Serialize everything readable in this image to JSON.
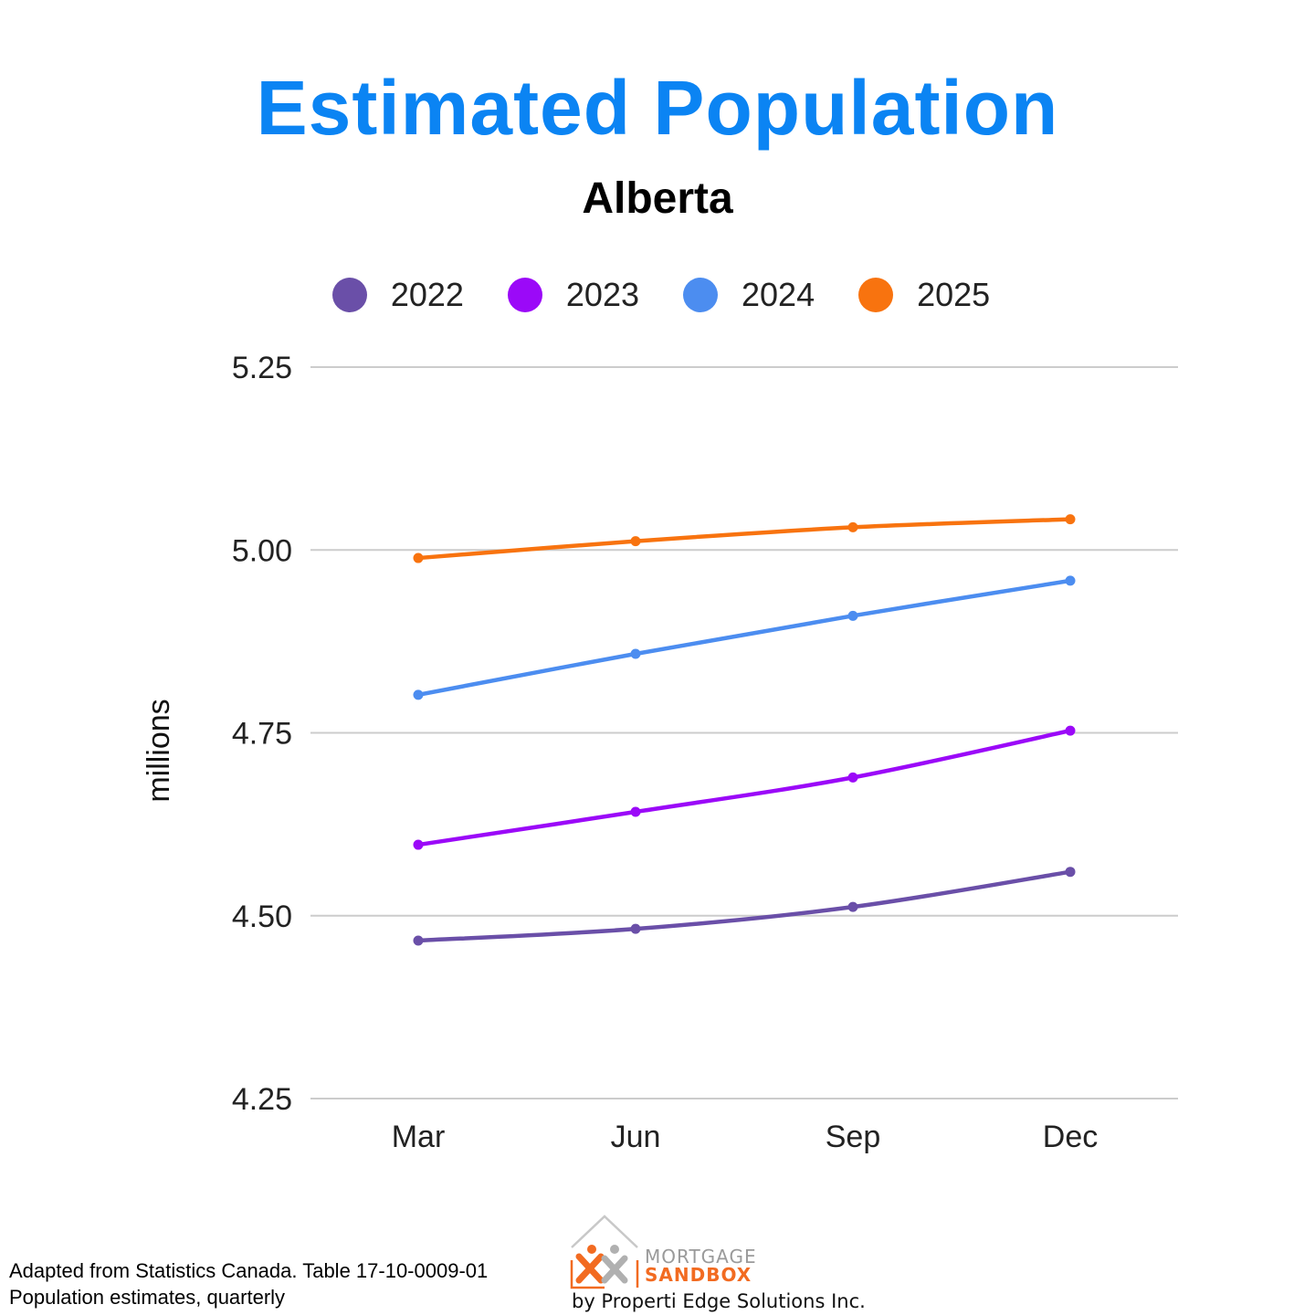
{
  "title": "Estimated Population",
  "subtitle": "Alberta",
  "chart_data": {
    "type": "line",
    "title": "Estimated Population",
    "subtitle": "Alberta",
    "xlabel": "",
    "ylabel": "millions",
    "categories": [
      "Mar",
      "Jun",
      "Sep",
      "Dec"
    ],
    "ylim": [
      4.25,
      5.25
    ],
    "yticks": [
      "4.25",
      "4.50",
      "4.75",
      "5.00",
      "5.25"
    ],
    "grid": true,
    "legend_position": "top",
    "series": [
      {
        "name": "2022",
        "color": "#6a4fa8",
        "values": [
          4.466,
          4.482,
          4.512,
          4.56
        ]
      },
      {
        "name": "2023",
        "color": "#9b09f8",
        "values": [
          4.597,
          4.642,
          4.689,
          4.753
        ]
      },
      {
        "name": "2024",
        "color": "#4c8df0",
        "values": [
          4.802,
          4.858,
          4.91,
          4.958
        ]
      },
      {
        "name": "2025",
        "color": "#f8730f",
        "values": [
          4.989,
          5.012,
          5.031,
          5.042
        ]
      }
    ]
  },
  "footer": {
    "source_line1": "Adapted from Statistics Canada. Table 17-10-0009-01",
    "source_line2": "Population estimates, quarterly"
  },
  "logo": {
    "word1": "MORTGAGE",
    "word2": "SANDBOX",
    "byline": "by Properti Edge Solutions Inc.",
    "primary_color": "#f26b21",
    "secondary_color": "#9a9a9a"
  }
}
